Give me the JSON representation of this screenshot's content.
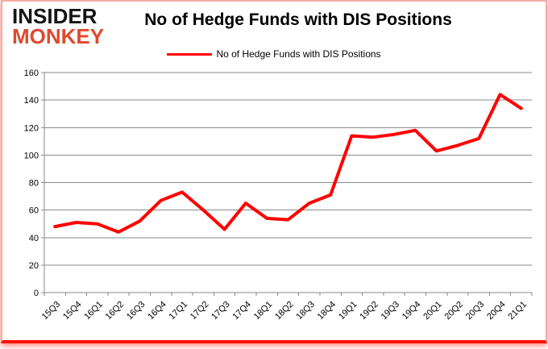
{
  "brand": {
    "line1": "INSIDER",
    "line2": "MONKEY",
    "color": "#e0492e"
  },
  "title": "No of Hedge Funds with DIS Positions",
  "legend": {
    "label": "No of Hedge Funds with DIS Positions",
    "color": "#ff0000"
  },
  "chart_data": {
    "type": "line",
    "title": "No of Hedge Funds with DIS Positions",
    "categories": [
      "15Q3",
      "15Q4",
      "16Q1",
      "16Q2",
      "16Q3",
      "16Q4",
      "17Q1",
      "17Q2",
      "17Q3",
      "17Q4",
      "18Q1",
      "18Q2",
      "18Q3",
      "18Q4",
      "19Q1",
      "19Q2",
      "19Q3",
      "19Q4",
      "20Q1",
      "20Q2",
      "20Q3",
      "20Q4",
      "21Q1"
    ],
    "series": [
      {
        "name": "No of Hedge Funds with DIS Positions",
        "color": "#ff0000",
        "values": [
          48,
          51,
          50,
          44,
          52,
          67,
          73,
          60,
          46,
          65,
          54,
          53,
          65,
          71,
          114,
          113,
          115,
          118,
          103,
          107,
          112,
          144,
          134
        ]
      }
    ],
    "ylim": [
      0,
      160
    ],
    "yticks": [
      0,
      20,
      40,
      60,
      80,
      100,
      120,
      140,
      160
    ],
    "grid": true,
    "gridline_color": "#8a8a8a",
    "axis_color": "#8a8a8a",
    "tick_label_color": "#000000",
    "legend_position": "top-center"
  }
}
